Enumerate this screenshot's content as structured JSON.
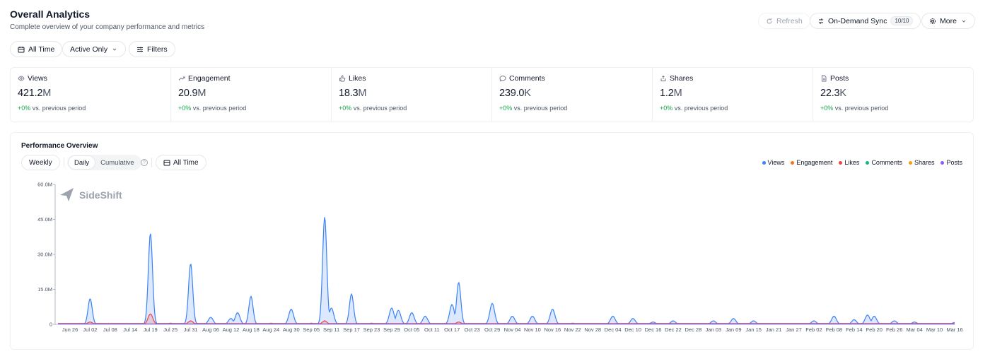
{
  "header": {
    "title": "Overall Analytics",
    "subtitle": "Complete overview of your company performance and metrics"
  },
  "filters": {
    "time": "All Time",
    "status": "Active Only",
    "filters": "Filters"
  },
  "actions": {
    "refresh": "Refresh",
    "sync": "On-Demand Sync",
    "sync_badge": "10/10",
    "more": "More"
  },
  "metrics": [
    {
      "label": "Views",
      "number": "421.2",
      "unit": "M",
      "change": "+0%",
      "change_text": " vs. previous period",
      "icon": "eye-icon"
    },
    {
      "label": "Engagement",
      "number": "20.9",
      "unit": "M",
      "change": "+0%",
      "change_text": " vs. previous period",
      "icon": "trending-up-icon"
    },
    {
      "label": "Likes",
      "number": "18.3",
      "unit": "M",
      "change": "+0%",
      "change_text": " vs. previous period",
      "icon": "thumbs-up-icon"
    },
    {
      "label": "Comments",
      "number": "239.0",
      "unit": "K",
      "change": "+0%",
      "change_text": " vs. previous period",
      "icon": "comment-icon"
    },
    {
      "label": "Shares",
      "number": "1.2",
      "unit": "M",
      "change": "+0%",
      "change_text": " vs. previous period",
      "icon": "share-icon"
    },
    {
      "label": "Posts",
      "number": "22.3",
      "unit": "K",
      "change": "+0%",
      "change_text": " vs. previous period",
      "icon": "document-icon"
    }
  ],
  "panel": {
    "title": "Performance Overview",
    "period": "Weekly",
    "toggle_daily": "Daily",
    "toggle_cumulative": "Cumulative",
    "range": "All Time",
    "watermark": "SideShift"
  },
  "colors": {
    "views": "#3b82f6",
    "engagement": "#f97316",
    "likes": "#ef4444",
    "comments": "#10b981",
    "shares": "#f59e0b",
    "posts": "#8b5cf6"
  },
  "chart_data": {
    "type": "area",
    "title": "",
    "xlabel": "",
    "ylabel": "",
    "ylim": [
      0,
      60000000
    ],
    "y_ticks": [
      "0",
      "15.0M",
      "30.0M",
      "45.0M",
      "60.0M"
    ],
    "y_tick_values": [
      0,
      15000000,
      30000000,
      45000000,
      60000000
    ],
    "x_ticks": [
      "Jun 26",
      "Jul 02",
      "Jul 08",
      "Jul 14",
      "Jul 19",
      "Jul 25",
      "Jul 31",
      "Aug 06",
      "Aug 12",
      "Aug 18",
      "Aug 24",
      "Aug 30",
      "Sep 05",
      "Sep 11",
      "Sep 17",
      "Sep 23",
      "Sep 29",
      "Oct 05",
      "Oct 11",
      "Oct 17",
      "Oct 23",
      "Oct 29",
      "Nov 04",
      "Nov 10",
      "Nov 16",
      "Nov 22",
      "Nov 28",
      "Dec 04",
      "Dec 10",
      "Dec 16",
      "Dec 22",
      "Dec 28",
      "Jan 03",
      "Jan 09",
      "Jan 15",
      "Jan 21",
      "Jan 27",
      "Feb 02",
      "Feb 08",
      "Feb 14",
      "Feb 20",
      "Feb 26",
      "Mar 04",
      "Mar 10",
      "Mar 16"
    ],
    "legend": [
      "Views",
      "Engagement",
      "Likes",
      "Comments",
      "Shares",
      "Posts"
    ],
    "legend_position": "top-right",
    "grid": false,
    "series": [
      {
        "name": "Views",
        "points": [
          [
            "Jun 26",
            0.3
          ],
          [
            "Jul 02",
            11
          ],
          [
            "Jul 08",
            0.2
          ],
          [
            "Jul 19",
            39
          ],
          [
            "Jul 25",
            0.5
          ],
          [
            "Jul 31",
            26
          ],
          [
            "Aug 06",
            3
          ],
          [
            "Aug 12",
            2.5
          ],
          [
            "Aug 14",
            5
          ],
          [
            "Aug 18",
            12
          ],
          [
            "Aug 24",
            0.5
          ],
          [
            "Aug 30",
            6.5
          ],
          [
            "Sep 05",
            0.5
          ],
          [
            "Sep 09",
            46
          ],
          [
            "Sep 11",
            7
          ],
          [
            "Sep 17",
            13
          ],
          [
            "Sep 23",
            0.5
          ],
          [
            "Sep 29",
            7
          ],
          [
            "Oct 01",
            6
          ],
          [
            "Oct 05",
            5
          ],
          [
            "Oct 09",
            3.5
          ],
          [
            "Oct 17",
            8.5
          ],
          [
            "Oct 19",
            18
          ],
          [
            "Oct 29",
            9
          ],
          [
            "Nov 04",
            3.5
          ],
          [
            "Nov 10",
            3.5
          ],
          [
            "Nov 16",
            6.5
          ],
          [
            "Nov 22",
            0.5
          ],
          [
            "Dec 04",
            3.5
          ],
          [
            "Dec 10",
            2.5
          ],
          [
            "Dec 16",
            1
          ],
          [
            "Dec 22",
            1.5
          ],
          [
            "Jan 03",
            1.5
          ],
          [
            "Jan 09",
            2.5
          ],
          [
            "Jan 15",
            1.5
          ],
          [
            "Feb 02",
            1.5
          ],
          [
            "Feb 08",
            3.5
          ],
          [
            "Feb 14",
            2
          ],
          [
            "Feb 18",
            4
          ],
          [
            "Feb 20",
            3.5
          ],
          [
            "Feb 26",
            1.5
          ],
          [
            "Mar 04",
            1
          ],
          [
            "Mar 16",
            0.8
          ]
        ]
      },
      {
        "name": "Likes",
        "points": [
          [
            "Jul 02",
            1
          ],
          [
            "Jul 19",
            4.5
          ],
          [
            "Jul 31",
            1.5
          ],
          [
            "Sep 09",
            1.5
          ],
          [
            "Oct 19",
            1
          ]
        ]
      }
    ]
  }
}
